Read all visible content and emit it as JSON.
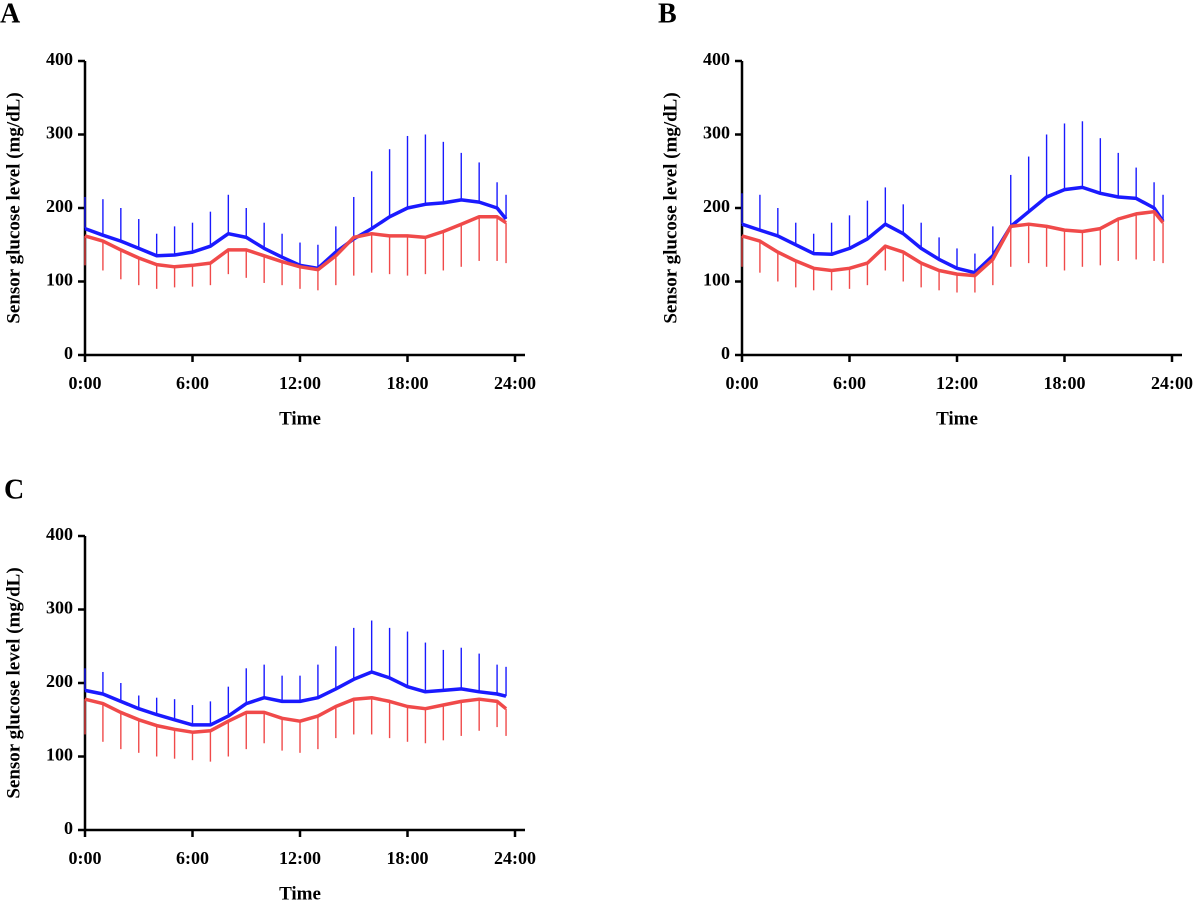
{
  "chart_data": [
    {
      "type": "line",
      "panel_label": "A",
      "x_label": "Time",
      "y_label": "Sensor glucose level (mg/dL)",
      "x": [
        0,
        1,
        2,
        3,
        4,
        5,
        6,
        7,
        8,
        9,
        10,
        11,
        12,
        13,
        14,
        15,
        16,
        17,
        18,
        19,
        20,
        21,
        22,
        23,
        23.5
      ],
      "xlim": [
        0,
        24
      ],
      "xticks": [
        {
          "value": 0,
          "label": "0:00"
        },
        {
          "value": 6,
          "label": "6:00"
        },
        {
          "value": 12,
          "label": "12:00"
        },
        {
          "value": 18,
          "label": "18:00"
        },
        {
          "value": 24,
          "label": "24:00"
        }
      ],
      "ylim": [
        0,
        400
      ],
      "yticks": [
        0,
        100,
        200,
        300,
        400
      ],
      "series": [
        {
          "color": "#1a1aff",
          "error_direction": "up",
          "values": [
            172,
            163,
            155,
            145,
            135,
            136,
            140,
            148,
            165,
            160,
            145,
            133,
            122,
            118,
            140,
            158,
            172,
            188,
            200,
            205,
            207,
            211,
            208,
            200,
            185
          ],
          "errors": [
            43,
            49,
            45,
            40,
            30,
            39,
            40,
            47,
            53,
            40,
            35,
            32,
            31,
            32,
            35,
            57,
            78,
            92,
            98,
            95,
            83,
            64,
            54,
            35,
            33
          ]
        },
        {
          "color": "#f04a4a",
          "error_direction": "down",
          "values": [
            162,
            155,
            143,
            132,
            123,
            120,
            122,
            125,
            143,
            143,
            135,
            127,
            120,
            116,
            135,
            160,
            165,
            162,
            162,
            160,
            168,
            178,
            188,
            188,
            180
          ],
          "errors": [
            40,
            40,
            40,
            37,
            33,
            28,
            29,
            30,
            33,
            38,
            37,
            32,
            30,
            28,
            40,
            52,
            53,
            52,
            54,
            50,
            53,
            58,
            60,
            60,
            55
          ]
        }
      ]
    },
    {
      "type": "line",
      "panel_label": "B",
      "x_label": "Time",
      "y_label": "Sensor glucose level (mg/dL)",
      "x": [
        0,
        1,
        2,
        3,
        4,
        5,
        6,
        7,
        8,
        9,
        10,
        11,
        12,
        13,
        14,
        15,
        16,
        17,
        18,
        19,
        20,
        21,
        22,
        23,
        23.5
      ],
      "xlim": [
        0,
        24
      ],
      "xticks": [
        {
          "value": 0,
          "label": "0:00"
        },
        {
          "value": 6,
          "label": "6:00"
        },
        {
          "value": 12,
          "label": "12:00"
        },
        {
          "value": 18,
          "label": "18:00"
        },
        {
          "value": 24,
          "label": "24:00"
        }
      ],
      "ylim": [
        0,
        400
      ],
      "yticks": [
        0,
        100,
        200,
        300,
        400
      ],
      "series": [
        {
          "color": "#1a1aff",
          "error_direction": "up",
          "values": [
            178,
            170,
            162,
            150,
            138,
            137,
            145,
            158,
            178,
            165,
            145,
            130,
            118,
            112,
            135,
            175,
            195,
            215,
            225,
            228,
            220,
            215,
            213,
            200,
            182
          ],
          "errors": [
            42,
            48,
            38,
            30,
            27,
            43,
            45,
            52,
            50,
            40,
            35,
            30,
            27,
            26,
            40,
            70,
            75,
            85,
            90,
            90,
            75,
            60,
            42,
            35,
            36
          ]
        },
        {
          "color": "#f04a4a",
          "error_direction": "down",
          "values": [
            162,
            155,
            140,
            128,
            118,
            115,
            118,
            125,
            148,
            140,
            125,
            115,
            110,
            108,
            130,
            175,
            178,
            175,
            170,
            168,
            172,
            185,
            192,
            195,
            180
          ],
          "errors": [
            42,
            43,
            40,
            36,
            30,
            27,
            28,
            30,
            33,
            40,
            33,
            27,
            25,
            23,
            35,
            55,
            53,
            55,
            55,
            48,
            50,
            57,
            62,
            67,
            55
          ]
        }
      ]
    },
    {
      "type": "line",
      "panel_label": "C",
      "x_label": "Time",
      "y_label": "Sensor glucose level (mg/dL)",
      "x": [
        0,
        1,
        2,
        3,
        4,
        5,
        6,
        7,
        8,
        9,
        10,
        11,
        12,
        13,
        14,
        15,
        16,
        17,
        18,
        19,
        20,
        21,
        22,
        23,
        23.5
      ],
      "xlim": [
        0,
        24
      ],
      "xticks": [
        {
          "value": 0,
          "label": "0:00"
        },
        {
          "value": 6,
          "label": "6:00"
        },
        {
          "value": 12,
          "label": "12:00"
        },
        {
          "value": 18,
          "label": "18:00"
        },
        {
          "value": 24,
          "label": "24:00"
        }
      ],
      "ylim": [
        0,
        400
      ],
      "yticks": [
        0,
        100,
        200,
        300,
        400
      ],
      "series": [
        {
          "color": "#1a1aff",
          "error_direction": "up",
          "values": [
            190,
            185,
            175,
            165,
            157,
            150,
            143,
            143,
            155,
            172,
            180,
            175,
            175,
            180,
            192,
            205,
            215,
            207,
            195,
            188,
            190,
            192,
            188,
            185,
            182
          ],
          "errors": [
            30,
            30,
            25,
            18,
            23,
            28,
            27,
            32,
            40,
            48,
            45,
            35,
            35,
            45,
            58,
            70,
            70,
            68,
            75,
            67,
            55,
            56,
            52,
            40,
            40
          ]
        },
        {
          "color": "#f04a4a",
          "error_direction": "down",
          "values": [
            178,
            172,
            160,
            150,
            142,
            137,
            133,
            135,
            148,
            160,
            160,
            152,
            148,
            155,
            168,
            178,
            180,
            175,
            168,
            165,
            170,
            175,
            178,
            175,
            165
          ],
          "errors": [
            48,
            52,
            50,
            45,
            42,
            40,
            38,
            42,
            48,
            50,
            42,
            44,
            43,
            45,
            43,
            48,
            50,
            50,
            48,
            47,
            48,
            47,
            43,
            35,
            37
          ]
        }
      ]
    }
  ]
}
